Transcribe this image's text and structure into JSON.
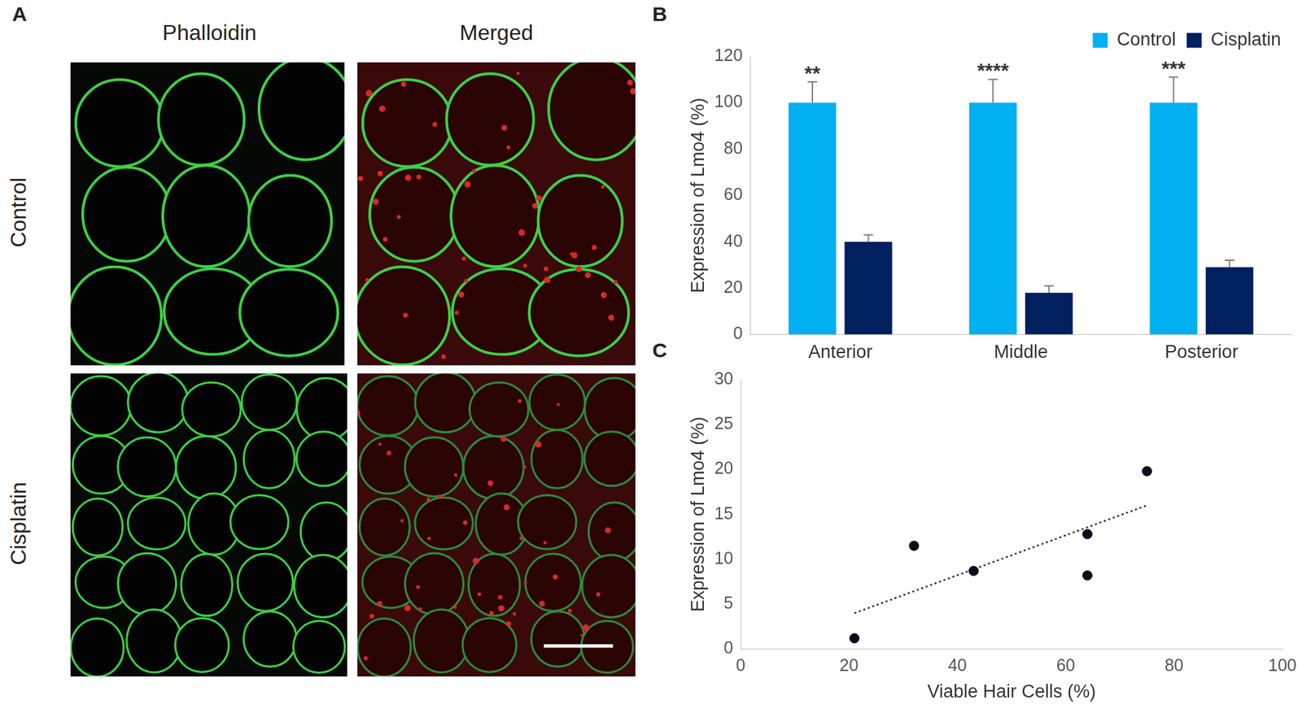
{
  "panel_labels": [
    "A",
    "B",
    "C"
  ],
  "panel_A": {
    "columns": [
      "Phalloidin",
      "Merged"
    ],
    "rows": [
      "Control",
      "Cisplatin"
    ]
  },
  "chart_data": [
    {
      "type": "bar",
      "y_label": "Expression of Lmo4 (%)",
      "categories": [
        "Anterior",
        "Middle",
        "Posterior"
      ],
      "series": [
        {
          "name": "Control",
          "color": "#00b0f0",
          "values": [
            100,
            100,
            100
          ],
          "errors": [
            9,
            10,
            11
          ]
        },
        {
          "name": "Cisplatin",
          "color": "#002060",
          "values": [
            40,
            18,
            29
          ],
          "errors": [
            3,
            3,
            3
          ]
        }
      ],
      "annotations": [
        {
          "category": "Anterior",
          "series": "Control",
          "text": "**"
        },
        {
          "category": "Middle",
          "series": "Control",
          "text": "****"
        },
        {
          "category": "Posterior",
          "series": "Control",
          "text": "***"
        }
      ],
      "ylim": [
        0,
        120
      ],
      "yticks": [
        0,
        20,
        40,
        60,
        80,
        100,
        120
      ],
      "grid": false,
      "legend": "top"
    },
    {
      "type": "scatter",
      "x_label": "Viable Hair Cells (%)",
      "y_label": "Expression of Lmo4 (%)",
      "x": [
        21,
        32,
        43,
        64,
        64,
        75
      ],
      "values": [
        1.2,
        11.5,
        8.7,
        12.8,
        8.2,
        19.8
      ],
      "color": "#0d0d1a",
      "trendline": {
        "x": [
          21,
          75
        ],
        "values": [
          4,
          16
        ],
        "line_style": "dotted"
      },
      "xlim": [
        0,
        100
      ],
      "xticks": [
        0,
        20,
        40,
        60,
        80,
        100
      ],
      "ylim": [
        0,
        30
      ],
      "yticks": [
        0,
        5,
        10,
        15,
        20,
        25,
        30
      ],
      "grid": false
    }
  ]
}
